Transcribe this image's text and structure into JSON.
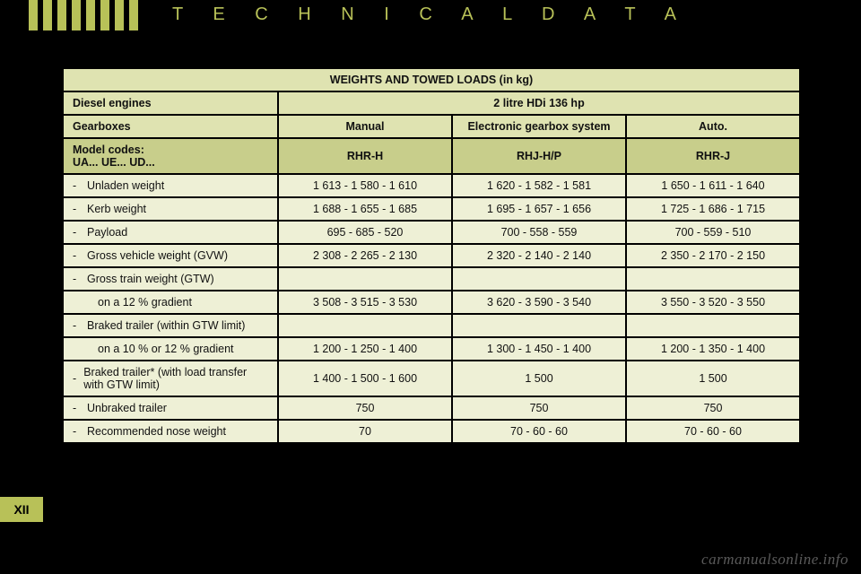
{
  "header": {
    "title": "T E C H N I C A L   D A T A",
    "stripe_color": "#b8c158",
    "stripe_count": 8
  },
  "table": {
    "title": "WEIGHTS AND TOWED LOADS (in kg)",
    "row_engines_label": "Diesel engines",
    "row_engines_value": "2 litre HDi 136 hp",
    "row_gearboxes_label": "Gearboxes",
    "gearbox_manual": "Manual",
    "gearbox_egs": "Electronic gearbox system",
    "gearbox_auto": "Auto.",
    "row_model_label": "Model codes:\nUA... UE... UD...",
    "model_manual": "RHR-H",
    "model_egs": "RHJ-H/P",
    "model_auto": "RHR-J",
    "rows": [
      {
        "label": "Unladen weight",
        "manual": "1 613 - 1 580 - 1 610",
        "egs": "1 620 - 1 582 - 1 581",
        "auto": "1 650 - 1 611 - 1 640"
      },
      {
        "label": "Kerb weight",
        "manual": "1 688 - 1 655 - 1 685",
        "egs": "1 695 - 1 657 - 1 656",
        "auto": "1 725 - 1 686 - 1 715"
      },
      {
        "label": "Payload",
        "manual": "695 - 685 - 520",
        "egs": "700 - 558 - 559",
        "auto": "700 - 559 - 510"
      },
      {
        "label": "Gross vehicle weight (GVW)",
        "manual": "2 308 - 2 265 - 2 130",
        "egs": "2 320 - 2 140 - 2 140",
        "auto": "2 350 - 2 170 - 2 150"
      },
      {
        "label": "Gross train weight (GTW)",
        "manual": "",
        "egs": "",
        "auto": ""
      },
      {
        "label": "on a 12 % gradient",
        "manual": "3 508 - 3 515 - 3 530",
        "egs": "3 620 - 3 590 - 3 540",
        "auto": "3 550 - 3 520 - 3 550",
        "nobullet": true
      },
      {
        "label": "Braked trailer (within GTW limit)",
        "manual": "",
        "egs": "",
        "auto": ""
      },
      {
        "label": "on a 10 % or 12 % gradient",
        "manual": "1 200 - 1 250 - 1 400",
        "egs": "1 300 - 1 450 - 1 400",
        "auto": "1 200 - 1 350 - 1 400",
        "nobullet": true
      },
      {
        "label": "Braked trailer* (with load transfer with GTW limit)",
        "manual": "1 400 - 1 500 - 1 600",
        "egs": "1 500",
        "auto": "1 500"
      },
      {
        "label": "Unbraked trailer",
        "manual": "750",
        "egs": "750",
        "auto": "750"
      },
      {
        "label": "Recommended nose weight",
        "manual": "70",
        "egs": "70 - 60 - 60",
        "auto": "70 - 60 - 60"
      }
    ]
  },
  "section": {
    "roman": "XII"
  },
  "watermark": "carmanualsonline.info",
  "colors": {
    "page_bg": "#000000",
    "accent": "#b8c158",
    "header_cell": "#dfe3b1",
    "sub_cell": "#c8ce8b",
    "data_cell": "#eef0d6",
    "border": "#000000",
    "text": "#111111"
  },
  "typography": {
    "title_fontsize": 20,
    "title_letter_spacing": 14,
    "table_fontsize": 12.5,
    "badge_fontsize": 14
  }
}
